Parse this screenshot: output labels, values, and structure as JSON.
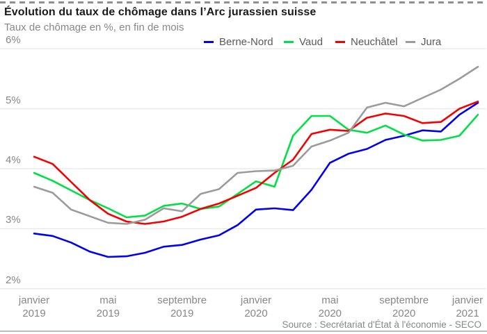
{
  "header": {
    "title": "Évolution du taux de chômage dans l’Arc jurassien suisse",
    "subtitle": "Taux de chômage en %, en fin de mois"
  },
  "legend": {
    "items": [
      {
        "label": "Berne-Nord",
        "color": "#0000f5"
      },
      {
        "label": "Vaud",
        "color": "#00e045"
      },
      {
        "label": "Neuchâtel",
        "color": "#f40000"
      },
      {
        "label": "Jura",
        "color": "#9b9b9b"
      }
    ]
  },
  "source": "Source : Secrétariat d'État à l'économie - SECO",
  "colors": {
    "grid": "#e8e8e8",
    "top_dashed_rule": "#8f8f8f",
    "bottom_rule": "#b5bfc6",
    "axis_text": "#878787",
    "title_text": "#1a1a1a"
  },
  "chart_data": {
    "type": "line",
    "title": "Évolution du taux de chômage dans l’Arc jurassien suisse",
    "subtitle": "Taux de chômage en %, en fin de mois",
    "xlabel": "",
    "ylabel": "Taux de chômage en %",
    "ylim": [
      2,
      6
    ],
    "grid": "horizontal",
    "legend_position": "top",
    "months": [
      "janv. 2019",
      "févr. 2019",
      "mars 2019",
      "avr. 2019",
      "mai 2019",
      "juin 2019",
      "juil. 2019",
      "août 2019",
      "sept. 2019",
      "oct. 2019",
      "nov. 2019",
      "déc. 2019",
      "janv. 2020",
      "févr. 2020",
      "mars 2020",
      "avr. 2020",
      "mai 2020",
      "juin 2020",
      "juil. 2020",
      "août 2020",
      "sept. 2020",
      "oct. 2020",
      "nov. 2020",
      "déc. 2020",
      "janv. 2021"
    ],
    "yticks": [
      {
        "label": "6%",
        "value": 6
      },
      {
        "label": "5%",
        "value": 5
      },
      {
        "label": "4%",
        "value": 4
      },
      {
        "label": "3%",
        "value": 3
      },
      {
        "label": "2%",
        "value": 2
      }
    ],
    "xticks": [
      {
        "line1": "janvier",
        "line2": "2019",
        "month_index": 0
      },
      {
        "line1": "mai",
        "line2": "2019",
        "month_index": 4
      },
      {
        "line1": "septembre",
        "line2": "2019",
        "month_index": 8
      },
      {
        "line1": "janvier",
        "line2": "2020",
        "month_index": 12
      },
      {
        "line1": "mai",
        "line2": "2020",
        "month_index": 16
      },
      {
        "line1": "septembre",
        "line2": "2020",
        "month_index": 20
      },
      {
        "line1": "janvier",
        "line2": "2021",
        "month_index": 24
      }
    ],
    "series": [
      {
        "name": "Berne-Nord",
        "color": "#0000f5",
        "values": [
          2.92,
          2.88,
          2.77,
          2.62,
          2.53,
          2.54,
          2.6,
          2.7,
          2.73,
          2.82,
          2.89,
          3.06,
          3.32,
          3.34,
          3.31,
          3.65,
          4.1,
          4.25,
          4.33,
          4.48,
          4.55,
          4.64,
          4.62,
          4.9,
          5.1
        ]
      },
      {
        "name": "Vaud",
        "color": "#00e045",
        "values": [
          3.93,
          3.8,
          3.64,
          3.48,
          3.34,
          3.19,
          3.22,
          3.38,
          3.42,
          3.33,
          3.37,
          3.58,
          3.79,
          3.7,
          4.55,
          4.88,
          4.88,
          4.65,
          4.6,
          4.72,
          4.57,
          4.47,
          4.48,
          4.55,
          4.9
        ]
      },
      {
        "name": "Neuchâtel",
        "color": "#f40000",
        "values": [
          4.2,
          4.08,
          3.78,
          3.48,
          3.25,
          3.12,
          3.08,
          3.12,
          3.2,
          3.33,
          3.42,
          3.55,
          3.68,
          3.93,
          4.15,
          4.58,
          4.65,
          4.63,
          4.85,
          4.92,
          4.88,
          4.76,
          4.78,
          5.0,
          5.12
        ]
      },
      {
        "name": "Jura",
        "color": "#9b9b9b",
        "values": [
          3.7,
          3.6,
          3.32,
          3.21,
          3.1,
          3.08,
          3.15,
          3.34,
          3.29,
          3.58,
          3.66,
          3.93,
          3.96,
          3.97,
          4.05,
          4.37,
          4.47,
          4.6,
          5.02,
          5.1,
          5.04,
          5.18,
          5.32,
          5.5,
          5.7
        ]
      }
    ]
  }
}
